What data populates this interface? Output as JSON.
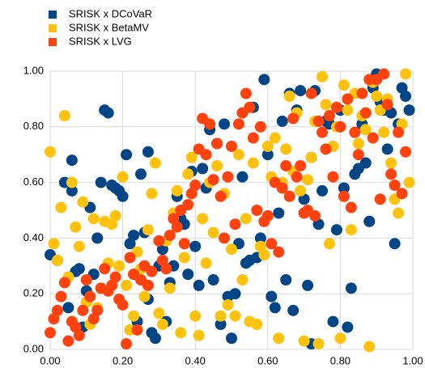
{
  "chart_data": {
    "type": "scatter",
    "legend": "top-left",
    "grid": true,
    "xlim": [
      0,
      1
    ],
    "ylim": [
      0,
      1
    ],
    "xticks": [
      {
        "value": 0,
        "label": "0.00"
      },
      {
        "value": 0.2,
        "label": "0.20"
      },
      {
        "value": 0.4,
        "label": "0.40"
      },
      {
        "value": 0.6,
        "label": "0.60"
      },
      {
        "value": 0.8,
        "label": "0.80"
      },
      {
        "value": 1,
        "label": "1.00"
      }
    ],
    "yticks": [
      {
        "value": 0,
        "label": "0.00"
      },
      {
        "value": 0.2,
        "label": "0.20"
      },
      {
        "value": 0.4,
        "label": "0.40"
      },
      {
        "value": 0.6,
        "label": "0.60"
      },
      {
        "value": 0.8,
        "label": "0.80"
      },
      {
        "value": 1,
        "label": "1.00"
      }
    ],
    "series": [
      {
        "name": "SRISK x DCoVaR",
        "color": "#004586",
        "x": [
          0.0,
          0.02,
          0.04,
          0.05,
          0.06,
          0.06,
          0.07,
          0.08,
          0.09,
          0.1,
          0.11,
          0.12,
          0.13,
          0.14,
          0.15,
          0.16,
          0.17,
          0.18,
          0.19,
          0.2,
          0.21,
          0.22,
          0.23,
          0.24,
          0.25,
          0.26,
          0.27,
          0.27,
          0.28,
          0.29,
          0.3,
          0.31,
          0.32,
          0.33,
          0.34,
          0.35,
          0.36,
          0.37,
          0.38,
          0.39,
          0.4,
          0.41,
          0.42,
          0.43,
          0.44,
          0.45,
          0.46,
          0.47,
          0.48,
          0.49,
          0.5,
          0.51,
          0.52,
          0.53,
          0.54,
          0.55,
          0.56,
          0.57,
          0.58,
          0.59,
          0.6,
          0.61,
          0.62,
          0.63,
          0.64,
          0.65,
          0.66,
          0.67,
          0.68,
          0.69,
          0.7,
          0.71,
          0.72,
          0.72,
          0.73,
          0.74,
          0.75,
          0.76,
          0.77,
          0.78,
          0.79,
          0.8,
          0.81,
          0.82,
          0.83,
          0.84,
          0.85,
          0.86,
          0.87,
          0.88,
          0.89,
          0.9,
          0.91,
          0.92,
          0.93,
          0.94,
          0.95,
          0.96,
          0.97,
          0.98,
          0.99
        ],
        "values": [
          0.34,
          0.32,
          0.6,
          0.15,
          0.57,
          0.68,
          0.28,
          0.29,
          0.08,
          0.21,
          0.51,
          0.27,
          0.4,
          0.6,
          0.86,
          0.85,
          0.59,
          0.58,
          0.57,
          0.55,
          0.7,
          0.38,
          0.41,
          0.1,
          0.63,
          0.42,
          0.71,
          0.18,
          0.06,
          0.04,
          0.3,
          0.36,
          0.1,
          0.24,
          0.3,
          0.55,
          0.47,
          0.45,
          0.27,
          0.64,
          0.37,
          0.23,
          0.65,
          0.58,
          0.79,
          0.25,
          0.74,
          0.09,
          0.81,
          0.19,
          0.04,
          0.2,
          0.38,
          0.62,
          0.31,
          0.32,
          0.87,
          0.33,
          0.4,
          0.97,
          0.7,
          0.19,
          0.15,
          0.49,
          0.82,
          0.25,
          0.92,
          0.14,
          0.86,
          0.93,
          0.54,
          0.23,
          0.02,
          0.69,
          0.93,
          0.45,
          0.57,
          0.82,
          0.81,
          0.1,
          0.43,
          0.86,
          0.58,
          0.08,
          0.22,
          0.63,
          0.65,
          0.81,
          0.67,
          0.46,
          0.94,
          0.99,
          0.89,
          0.86,
          0.72,
          0.85,
          0.38,
          0.81,
          0.94,
          0.91,
          0.86
        ]
      },
      {
        "name": "SRISK x BetaMV",
        "color": "#ffc20e",
        "x": [
          0.0,
          0.01,
          0.02,
          0.03,
          0.04,
          0.05,
          0.06,
          0.07,
          0.08,
          0.09,
          0.1,
          0.11,
          0.12,
          0.13,
          0.14,
          0.15,
          0.16,
          0.17,
          0.18,
          0.19,
          0.2,
          0.21,
          0.22,
          0.23,
          0.24,
          0.25,
          0.26,
          0.27,
          0.28,
          0.29,
          0.3,
          0.31,
          0.32,
          0.33,
          0.34,
          0.35,
          0.36,
          0.37,
          0.38,
          0.39,
          0.4,
          0.41,
          0.42,
          0.43,
          0.44,
          0.45,
          0.46,
          0.47,
          0.48,
          0.49,
          0.5,
          0.51,
          0.52,
          0.53,
          0.54,
          0.55,
          0.56,
          0.57,
          0.58,
          0.59,
          0.6,
          0.61,
          0.62,
          0.63,
          0.64,
          0.65,
          0.66,
          0.67,
          0.68,
          0.69,
          0.7,
          0.71,
          0.72,
          0.73,
          0.74,
          0.75,
          0.76,
          0.77,
          0.78,
          0.79,
          0.8,
          0.81,
          0.82,
          0.83,
          0.84,
          0.85,
          0.86,
          0.87,
          0.88,
          0.89,
          0.9,
          0.91,
          0.92,
          0.93,
          0.94,
          0.95,
          0.96,
          0.97,
          0.98,
          0.99
        ],
        "values": [
          0.71,
          0.38,
          0.32,
          0.51,
          0.84,
          0.26,
          0.6,
          0.44,
          0.37,
          0.53,
          0.17,
          0.09,
          0.47,
          0.15,
          0.22,
          0.46,
          0.31,
          0.45,
          0.48,
          0.3,
          0.62,
          0.23,
          0.07,
          0.12,
          0.35,
          0.29,
          0.19,
          0.43,
          0.56,
          0.67,
          0.13,
          0.09,
          0.39,
          0.22,
          0.49,
          0.57,
          0.06,
          0.33,
          0.63,
          0.69,
          0.12,
          0.05,
          0.47,
          0.31,
          0.6,
          0.42,
          0.66,
          0.12,
          0.56,
          0.16,
          0.36,
          0.12,
          0.7,
          0.25,
          0.47,
          0.1,
          0.67,
          0.09,
          0.37,
          0.34,
          0.73,
          0.62,
          0.76,
          0.04,
          0.6,
          0.72,
          0.91,
          0.64,
          0.85,
          0.57,
          0.03,
          0.61,
          0.69,
          0.82,
          0.02,
          0.98,
          0.88,
          0.38,
          0.73,
          0.8,
          0.04,
          0.95,
          0.86,
          0.43,
          0.92,
          0.74,
          0.84,
          0.79,
          0.01,
          0.96,
          0.91,
          0.86,
          0.78,
          0.9,
          0.67,
          0.54,
          0.49,
          0.81,
          0.99,
          0.6
        ]
      },
      {
        "name": "SRISK x LVG",
        "color": "#ff420e",
        "x": [
          0.0,
          0.01,
          0.02,
          0.03,
          0.04,
          0.05,
          0.06,
          0.07,
          0.08,
          0.09,
          0.1,
          0.11,
          0.12,
          0.13,
          0.14,
          0.15,
          0.16,
          0.17,
          0.18,
          0.19,
          0.2,
          0.21,
          0.22,
          0.23,
          0.24,
          0.25,
          0.26,
          0.27,
          0.28,
          0.3,
          0.31,
          0.32,
          0.33,
          0.34,
          0.35,
          0.36,
          0.37,
          0.38,
          0.39,
          0.4,
          0.41,
          0.42,
          0.43,
          0.44,
          0.45,
          0.46,
          0.47,
          0.48,
          0.49,
          0.5,
          0.51,
          0.52,
          0.53,
          0.54,
          0.55,
          0.56,
          0.57,
          0.58,
          0.59,
          0.6,
          0.61,
          0.62,
          0.63,
          0.64,
          0.65,
          0.66,
          0.67,
          0.68,
          0.69,
          0.7,
          0.71,
          0.72,
          0.73,
          0.74,
          0.75,
          0.76,
          0.77,
          0.78,
          0.79,
          0.8,
          0.81,
          0.82,
          0.83,
          0.84,
          0.85,
          0.86,
          0.87,
          0.88,
          0.89,
          0.9,
          0.91,
          0.92,
          0.93,
          0.94,
          0.95,
          0.96,
          0.97,
          0.98
        ],
        "values": [
          0.06,
          0.11,
          0.14,
          0.19,
          0.24,
          0.03,
          0.1,
          0.08,
          0.05,
          0.14,
          0.25,
          0.19,
          0.11,
          0.14,
          0.22,
          0.29,
          0.21,
          0.23,
          0.26,
          0.18,
          0.16,
          0.02,
          0.33,
          0.27,
          0.07,
          0.25,
          0.3,
          0.23,
          0.28,
          0.39,
          0.32,
          0.29,
          0.41,
          0.47,
          0.44,
          0.5,
          0.38,
          0.52,
          0.56,
          0.59,
          0.72,
          0.83,
          0.7,
          0.81,
          0.61,
          0.74,
          0.55,
          0.4,
          0.62,
          0.73,
          0.45,
          0.81,
          0.85,
          0.92,
          0.87,
          0.76,
          0.5,
          0.8,
          0.46,
          0.48,
          0.38,
          0.6,
          0.35,
          0.58,
          0.66,
          0.55,
          0.83,
          0.62,
          0.66,
          0.49,
          0.5,
          0.92,
          0.48,
          0.82,
          0.78,
          0.72,
          0.84,
          0.62,
          0.87,
          0.8,
          0.55,
          0.9,
          0.51,
          0.78,
          0.7,
          0.92,
          0.85,
          0.97,
          0.76,
          0.97,
          0.54,
          0.99,
          0.88,
          0.63,
          0.59,
          0.78,
          0.56,
          0.71
        ]
      }
    ]
  }
}
